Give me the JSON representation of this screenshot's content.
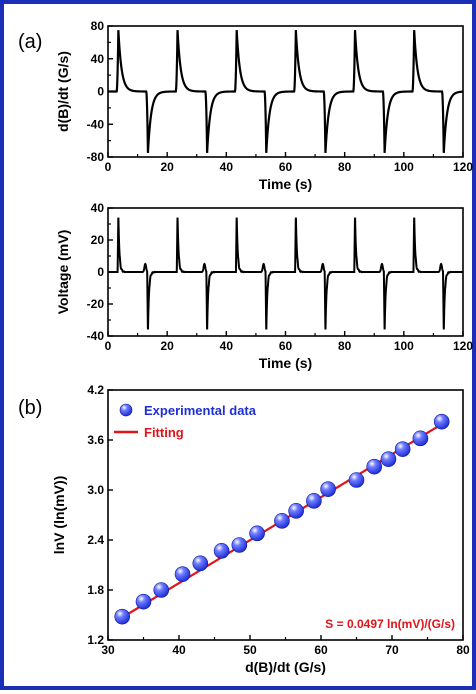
{
  "chart_data": [
    {
      "id": "a1",
      "panel_label": "(a)",
      "type": "line",
      "xlabel": "Time (s)",
      "ylabel": "d(B)/dt (G/s)",
      "xlim": [
        0,
        120
      ],
      "ylim": [
        -80,
        80
      ],
      "xticks": [
        0,
        20,
        40,
        60,
        80,
        100,
        120
      ],
      "yticks": [
        -80,
        -40,
        0,
        40,
        80
      ],
      "yticks_minor": [
        -60,
        -20,
        20,
        60
      ],
      "period_s": 20,
      "positive_pulse_times": [
        3.5,
        23.5,
        43.5,
        63.5,
        83.5,
        103.5
      ],
      "negative_pulse_times": [
        13.5,
        33.5,
        53.5,
        73.5,
        93.5,
        113.5
      ],
      "peak_value": 75,
      "color": "#000000"
    },
    {
      "id": "a2",
      "type": "line",
      "xlabel": "Time (s)",
      "ylabel": "Voltage (mV)",
      "xlim": [
        0,
        120
      ],
      "ylim": [
        -40,
        40
      ],
      "xticks": [
        0,
        20,
        40,
        60,
        80,
        100,
        120
      ],
      "yticks": [
        -40,
        -20,
        0,
        20,
        40
      ],
      "yticks_minor": [
        -30,
        -10,
        10,
        30
      ],
      "positive_spike_times": [
        3.5,
        23.5,
        43.5,
        63.5,
        83.5,
        103.5
      ],
      "negative_spike_times": [
        13.5,
        33.5,
        53.5,
        73.5,
        93.5,
        113.5
      ],
      "positive_peak": 36,
      "negative_peak": -38,
      "color": "#000000"
    },
    {
      "id": "b",
      "panel_label": "(b)",
      "type": "scatter",
      "xlabel": "d(B)/dt (G/s)",
      "ylabel": "lnV (ln(mV))",
      "xlim": [
        30,
        80
      ],
      "ylim": [
        1.2,
        4.2
      ],
      "xticks": [
        30,
        40,
        50,
        60,
        70,
        80
      ],
      "yticks": [
        1.2,
        1.8,
        2.4,
        3.0,
        3.6,
        4.2
      ],
      "series": [
        {
          "name": "Experimental data",
          "kind": "points",
          "color": "#1f2fd6",
          "x": [
            32,
            35,
            37.5,
            40.5,
            43,
            46,
            48.5,
            51,
            54.5,
            56.5,
            59,
            61,
            65,
            67.5,
            69.5,
            71.5,
            74,
            77
          ],
          "y": [
            1.48,
            1.66,
            1.8,
            1.99,
            2.12,
            2.27,
            2.34,
            2.48,
            2.63,
            2.75,
            2.87,
            3.01,
            3.12,
            3.28,
            3.37,
            3.49,
            3.62,
            3.82
          ]
        },
        {
          "name": "Fitting",
          "kind": "line",
          "color": "#e0141a",
          "x": [
            32,
            77
          ],
          "y": [
            1.47,
            3.79
          ]
        }
      ],
      "annotation": "S = 0.0497 ln(mV)/(G/s)",
      "annotation_color": "#e0141a",
      "legend_position": "top-left"
    }
  ]
}
